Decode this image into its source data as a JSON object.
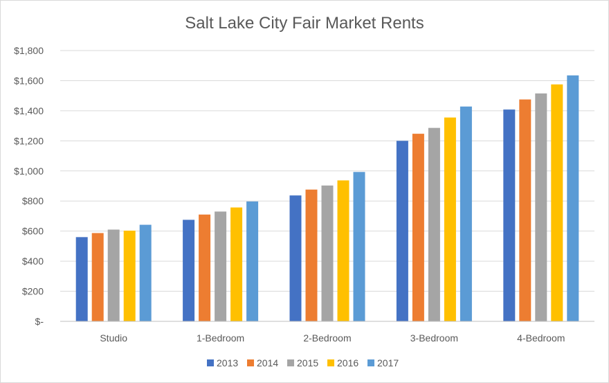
{
  "chart_data": {
    "type": "bar",
    "title": "Salt Lake City Fair Market Rents",
    "xlabel": "",
    "ylabel": "",
    "categories": [
      "Studio",
      "1-Bedroom",
      "2-Bedroom",
      "3-Bedroom",
      "4-Bedroom"
    ],
    "ylim": [
      0,
      1800
    ],
    "yticks": [
      0,
      200,
      400,
      600,
      800,
      1000,
      1200,
      1400,
      1600,
      1800
    ],
    "ytick_labels": [
      "$-",
      "$200",
      "$400",
      "$600",
      "$800",
      "$1,000",
      "$1,200",
      "$1,400",
      "$1,600",
      "$1,800"
    ],
    "grid": true,
    "legend_position": "bottom",
    "series": [
      {
        "name": "2013",
        "color": "#4472C4",
        "values": [
          560,
          675,
          837,
          1200,
          1408
        ]
      },
      {
        "name": "2014",
        "color": "#ED7D31",
        "values": [
          587,
          710,
          876,
          1247,
          1475
        ]
      },
      {
        "name": "2015",
        "color": "#A5A5A5",
        "values": [
          610,
          730,
          903,
          1286,
          1515
        ]
      },
      {
        "name": "2016",
        "color": "#FFC000",
        "values": [
          603,
          757,
          937,
          1355,
          1575
        ]
      },
      {
        "name": "2017",
        "color": "#5B9BD5",
        "values": [
          642,
          797,
          993,
          1428,
          1635
        ]
      }
    ]
  }
}
